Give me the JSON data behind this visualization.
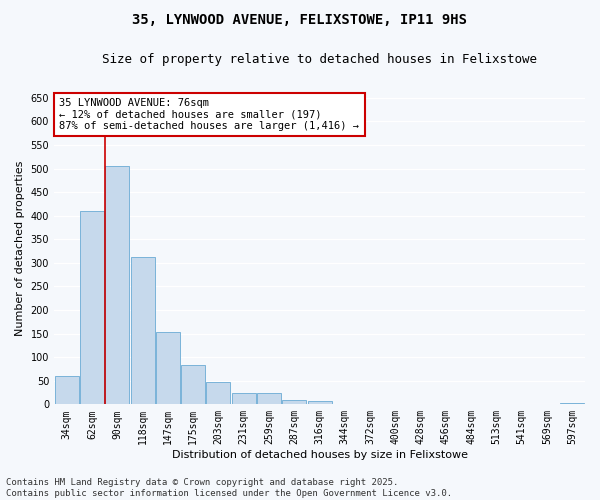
{
  "title": "35, LYNWOOD AVENUE, FELIXSTOWE, IP11 9HS",
  "subtitle": "Size of property relative to detached houses in Felixstowe",
  "xlabel": "Distribution of detached houses by size in Felixstowe",
  "ylabel": "Number of detached properties",
  "categories": [
    "34sqm",
    "62sqm",
    "90sqm",
    "118sqm",
    "147sqm",
    "175sqm",
    "203sqm",
    "231sqm",
    "259sqm",
    "287sqm",
    "316sqm",
    "344sqm",
    "372sqm",
    "400sqm",
    "428sqm",
    "456sqm",
    "484sqm",
    "513sqm",
    "541sqm",
    "569sqm",
    "597sqm"
  ],
  "values": [
    60,
    410,
    505,
    312,
    153,
    84,
    47,
    23,
    24,
    10,
    7,
    0,
    0,
    0,
    0,
    0,
    0,
    0,
    0,
    0,
    3
  ],
  "bar_color": "#c6d9ec",
  "bar_edge_color": "#6aaad4",
  "property_line_color": "#cc0000",
  "annotation_text": "35 LYNWOOD AVENUE: 76sqm\n← 12% of detached houses are smaller (197)\n87% of semi-detached houses are larger (1,416) →",
  "annotation_box_facecolor": "#ffffff",
  "annotation_box_edgecolor": "#cc0000",
  "ylim": [
    0,
    660
  ],
  "yticks": [
    0,
    50,
    100,
    150,
    200,
    250,
    300,
    350,
    400,
    450,
    500,
    550,
    600,
    650
  ],
  "background_color": "#f5f8fc",
  "grid_color": "#ffffff",
  "footer": "Contains HM Land Registry data © Crown copyright and database right 2025.\nContains public sector information licensed under the Open Government Licence v3.0.",
  "title_fontsize": 10,
  "subtitle_fontsize": 9,
  "axis_label_fontsize": 8,
  "tick_fontsize": 7,
  "footer_fontsize": 6.5
}
